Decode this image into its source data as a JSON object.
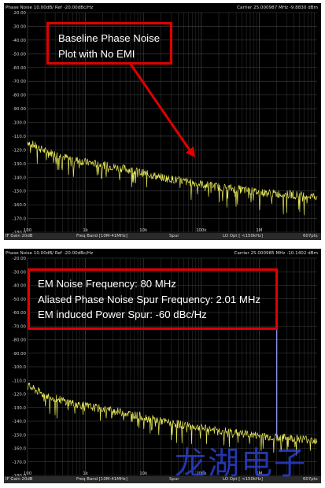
{
  "colors": {
    "trace": "#e8e85a",
    "grid": "#444444",
    "callout": "#e00000",
    "spur": "#9aa6ff",
    "arrow": "#e00000"
  },
  "top_panel": {
    "header_left": "Phase Noise 10.00dB/ Ref -20.00dBc/Hz",
    "header_right": "Carrier 25.000987 MHz      -9.8830 dBm",
    "ref_label": "-20.00",
    "callout_lines": [
      "Baseline Phase Noise",
      "Plot with No EMI"
    ],
    "footer": {
      "if_gain": "IF Gain 20dB",
      "freq_band": "Freq Band [10M-41MHz]",
      "spur": "Spur",
      "lo_opt": "LO Opt [ <150kHz]",
      "points": "607pts"
    }
  },
  "bottom_panel": {
    "header_left": "Phase Noise 10.00dB/ Ref -20.00dBc/Hz",
    "header_right": "Carrier 25.000985 MHz      -10.1402 dBm",
    "ref_label": "-20.00",
    "callout_lines": [
      "EM Noise Frequency: 80 MHz",
      "Aliased Phase Noise Spur Frequency: 2.01 MHz",
      "EM induced Power Spur: -60 dBc/Hz"
    ],
    "footer": {
      "if_gain": "IF Gain 20dB",
      "freq_band": "Freq Band [10M-41MHz]",
      "spur": "Spur",
      "lo_opt": "LO Opt [ <150kHz]",
      "points": "607pts"
    }
  },
  "watermark": "龙湖电子",
  "chart_data": [
    {
      "type": "line",
      "title": "",
      "xlabel": "",
      "ylabel": "",
      "x_scale": "log",
      "xlim": [
        100,
        10000000
      ],
      "ylim": [
        -180,
        -20
      ],
      "x_ticks": [
        "100",
        "1k",
        "10k",
        "100k",
        "1M"
      ],
      "y_ticks": [
        "-20.00",
        "-30.00",
        "-40.00",
        "-50.00",
        "-60.00",
        "-70.00",
        "-80.00",
        "-90.00",
        "-100.0",
        "-110.0",
        "-120.0",
        "-130.0",
        "-140.0",
        "-150.0",
        "-160.0",
        "-170.0",
        "-180.0"
      ],
      "grid": true,
      "series": [
        {
          "x": [
            100,
            200,
            500,
            1000,
            2000,
            5000,
            10000,
            20000,
            50000,
            100000,
            200000,
            500000,
            1000000,
            2000000,
            5000000,
            10000000
          ],
          "y": [
            -114,
            -121,
            -126,
            -129,
            -131,
            -134,
            -137,
            -140,
            -143,
            -145,
            -147,
            -149,
            -151,
            -152,
            -153,
            -154
          ]
        }
      ]
    },
    {
      "type": "line",
      "title": "",
      "xlabel": "",
      "ylabel": "",
      "x_scale": "log",
      "xlim": [
        100,
        10000000
      ],
      "ylim": [
        -180,
        -20
      ],
      "x_ticks": [
        "100",
        "1k",
        "10k",
        "100k",
        "1M"
      ],
      "y_ticks": [
        "-20.00",
        "-30.00",
        "-40.00",
        "-50.00",
        "-60.00",
        "-70.00",
        "-80.00",
        "-90.00",
        "-100.0",
        "-110.0",
        "-120.0",
        "-130.0",
        "-140.0",
        "-150.0",
        "-160.0",
        "-170.0",
        "-180.0"
      ],
      "grid": true,
      "series": [
        {
          "x": [
            100,
            200,
            500,
            1000,
            2000,
            5000,
            10000,
            20000,
            50000,
            100000,
            200000,
            500000,
            1000000,
            2000000,
            5000000,
            10000000
          ],
          "y": [
            -114,
            -121,
            -126,
            -129,
            -131,
            -134,
            -137,
            -140,
            -143,
            -145,
            -147,
            -149,
            -151,
            -152,
            -153,
            -154
          ]
        }
      ],
      "spur": {
        "x": 2010000,
        "y": -60
      }
    }
  ]
}
